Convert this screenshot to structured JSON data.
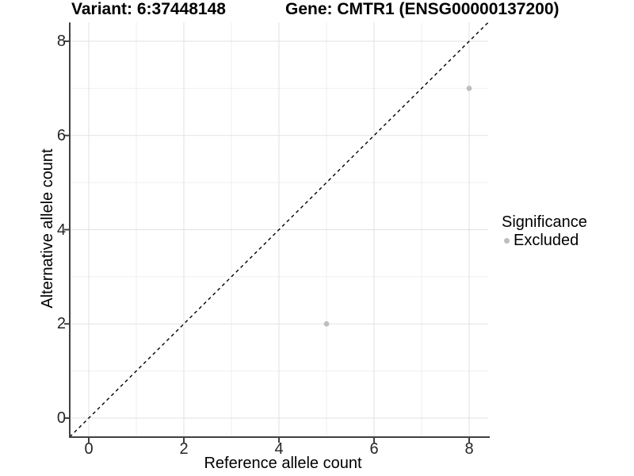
{
  "chart_data": {
    "type": "scatter",
    "titles": {
      "left": "Variant: 6:37448148",
      "right": "Gene: CMTR1 (ENSG00000137200)"
    },
    "xlabel": "Reference allele count",
    "ylabel": "Alternative allele count",
    "xlim": [
      -0.4,
      8.4
    ],
    "ylim": [
      -0.4,
      8.4
    ],
    "x_ticks": [
      0,
      2,
      4,
      6,
      8
    ],
    "x_minor_ticks": [
      1,
      3,
      5,
      7
    ],
    "y_ticks": [
      0,
      2,
      4,
      6,
      8
    ],
    "y_minor_ticks": [
      1,
      3,
      5,
      7
    ],
    "grid": "major+minor",
    "identity_line": {
      "slope": 1,
      "intercept": 0,
      "linetype": "dashed",
      "color": "#000000"
    },
    "series": [
      {
        "name": "Excluded",
        "color": "#bebebe",
        "marker": "circle",
        "points": [
          {
            "x": 5,
            "y": 2
          },
          {
            "x": 8,
            "y": 7
          }
        ]
      }
    ],
    "legend": {
      "title": "Significance",
      "position": "right",
      "items": [
        {
          "label": "Excluded",
          "color": "#bebebe"
        }
      ]
    }
  },
  "colors": {
    "background": "#ffffff",
    "grid_major": "#e2e2e2",
    "grid_minor": "#efefef",
    "axis": "#404040",
    "tick_text": "#262626",
    "point": "#bebebe"
  }
}
